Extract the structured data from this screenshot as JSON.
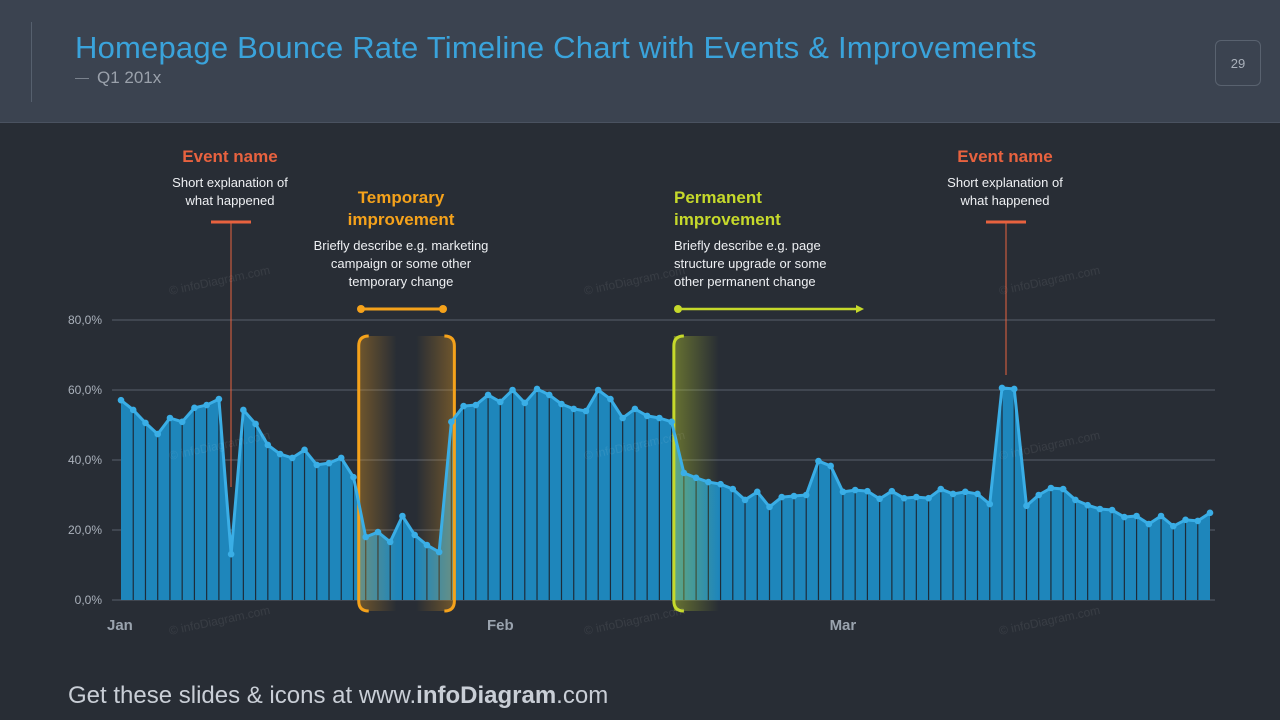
{
  "header": {
    "title": "Homepage Bounce Rate Timeline Chart with Events & Improvements",
    "subtitle": "Q1 201x",
    "page_number": "29"
  },
  "annotations": {
    "event_left": {
      "title": "Event name",
      "text1": "Short explanation of",
      "text2": "what happened"
    },
    "temporary": {
      "title1": "Temporary",
      "title2": "improvement",
      "text1": "Briefly describe e.g. marketing",
      "text2": "campaign or some other",
      "text3": "temporary change"
    },
    "permanent": {
      "title1": "Permanent",
      "title2": "improvement",
      "text1": "Briefly describe e.g. page",
      "text2": "structure upgrade or some",
      "text3": "other permanent change"
    },
    "event_right": {
      "title": "Event name",
      "text1": "Short explanation of",
      "text2": "what happened"
    }
  },
  "watermark": "© infoDiagram.com",
  "footer": {
    "prefix": "Get these slides & icons at www.",
    "brand": "infoDiagram",
    "suffix": ".com"
  },
  "colors": {
    "accent": "#3aa3db",
    "bar": "#1e86bb",
    "line": "#3aaee6",
    "event": "#e8623f",
    "temporary": "#f5a21b",
    "permanent": "#c6d92b"
  },
  "chart_data": {
    "type": "area",
    "title": "",
    "ylim": [
      0,
      80
    ],
    "yticks": [
      "0,0%",
      "20,0%",
      "40,0%",
      "60,0%",
      "80,0%"
    ],
    "ytick_values": [
      0,
      20,
      40,
      60,
      80
    ],
    "xtick_labels": [
      {
        "label": "Jan",
        "day": 1
      },
      {
        "label": "Feb",
        "day": 32
      },
      {
        "label": "Mar",
        "day": 60
      }
    ],
    "grid": true,
    "values": [
      57.1,
      54.3,
      50.6,
      47.4,
      52,
      50.9,
      54.9,
      55.7,
      57.4,
      13.1,
      54.3,
      50.3,
      44.3,
      41.7,
      40.6,
      42.9,
      38.6,
      39.1,
      40.6,
      35.1,
      18,
      19.4,
      16.6,
      24,
      18.6,
      15.7,
      13.7,
      50.9,
      55.4,
      55.7,
      58.6,
      56.6,
      60,
      56.3,
      60.3,
      58.6,
      56,
      54.6,
      54,
      60,
      57.4,
      52,
      54.6,
      52.6,
      52,
      50.9,
      36.3,
      34.9,
      33.7,
      33.1,
      31.7,
      28.6,
      30.9,
      26.6,
      29.4,
      29.7,
      30,
      39.7,
      38.3,
      30.9,
      31.4,
      31.1,
      28.9,
      31.1,
      29.1,
      29.4,
      29.1,
      31.7,
      30.3,
      30.9,
      30.3,
      27.4,
      60.6,
      60.3,
      26.9,
      30,
      32,
      31.7,
      28.6,
      27.1,
      26,
      25.7,
      23.7,
      24,
      21.7,
      24,
      21.1,
      22.9,
      22.6,
      24.9
    ],
    "events": [
      {
        "day": 10
      },
      {
        "day": 73
      }
    ],
    "temporary_period": {
      "start_day": 21,
      "end_day": 28
    },
    "permanent_start_day": 47
  }
}
